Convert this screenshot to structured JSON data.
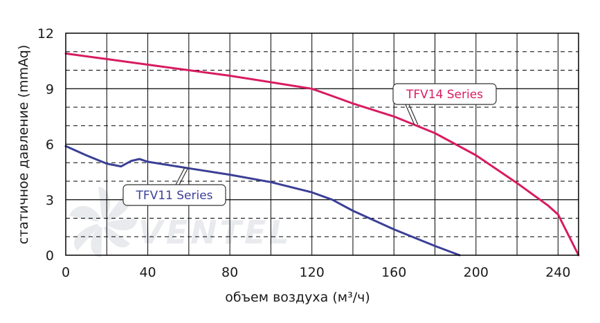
{
  "chart_data": {
    "type": "line",
    "title": "",
    "xlabel": "объем воздуха (м³/ч)",
    "ylabel": "статичное давление (mmAq)",
    "xlim": [
      0,
      250
    ],
    "ylim": [
      0,
      12
    ],
    "xticks": [
      0,
      40,
      80,
      120,
      160,
      200,
      240
    ],
    "yticks": [
      0,
      3,
      6,
      9,
      12
    ],
    "grid": true,
    "series": [
      {
        "name": "TFV14 Series",
        "color": "#d81b60",
        "x": [
          0,
          20,
          40,
          60,
          80,
          100,
          120,
          130,
          140,
          160,
          180,
          200,
          220,
          235,
          240,
          250
        ],
        "y": [
          10.9,
          10.6,
          10.3,
          10.0,
          9.7,
          9.35,
          9.0,
          8.6,
          8.2,
          7.5,
          6.6,
          5.4,
          3.9,
          2.7,
          2.2,
          0
        ]
      },
      {
        "name": "TFV11 Series",
        "color": "#3a3f96",
        "x": [
          0,
          10,
          20,
          27,
          32,
          36,
          40,
          60,
          80,
          100,
          120,
          130,
          140,
          160,
          180,
          192
        ],
        "y": [
          5.9,
          5.4,
          4.95,
          4.8,
          5.1,
          5.2,
          5.05,
          4.7,
          4.35,
          3.95,
          3.4,
          3.0,
          2.4,
          1.4,
          0.5,
          0
        ]
      }
    ],
    "annotations": [
      {
        "text": "TFV14 Series",
        "series": 0
      },
      {
        "text": "TFV11 Series",
        "series": 1
      }
    ]
  },
  "watermark": {
    "icon": "fan-icon",
    "text": "VENTEL"
  }
}
